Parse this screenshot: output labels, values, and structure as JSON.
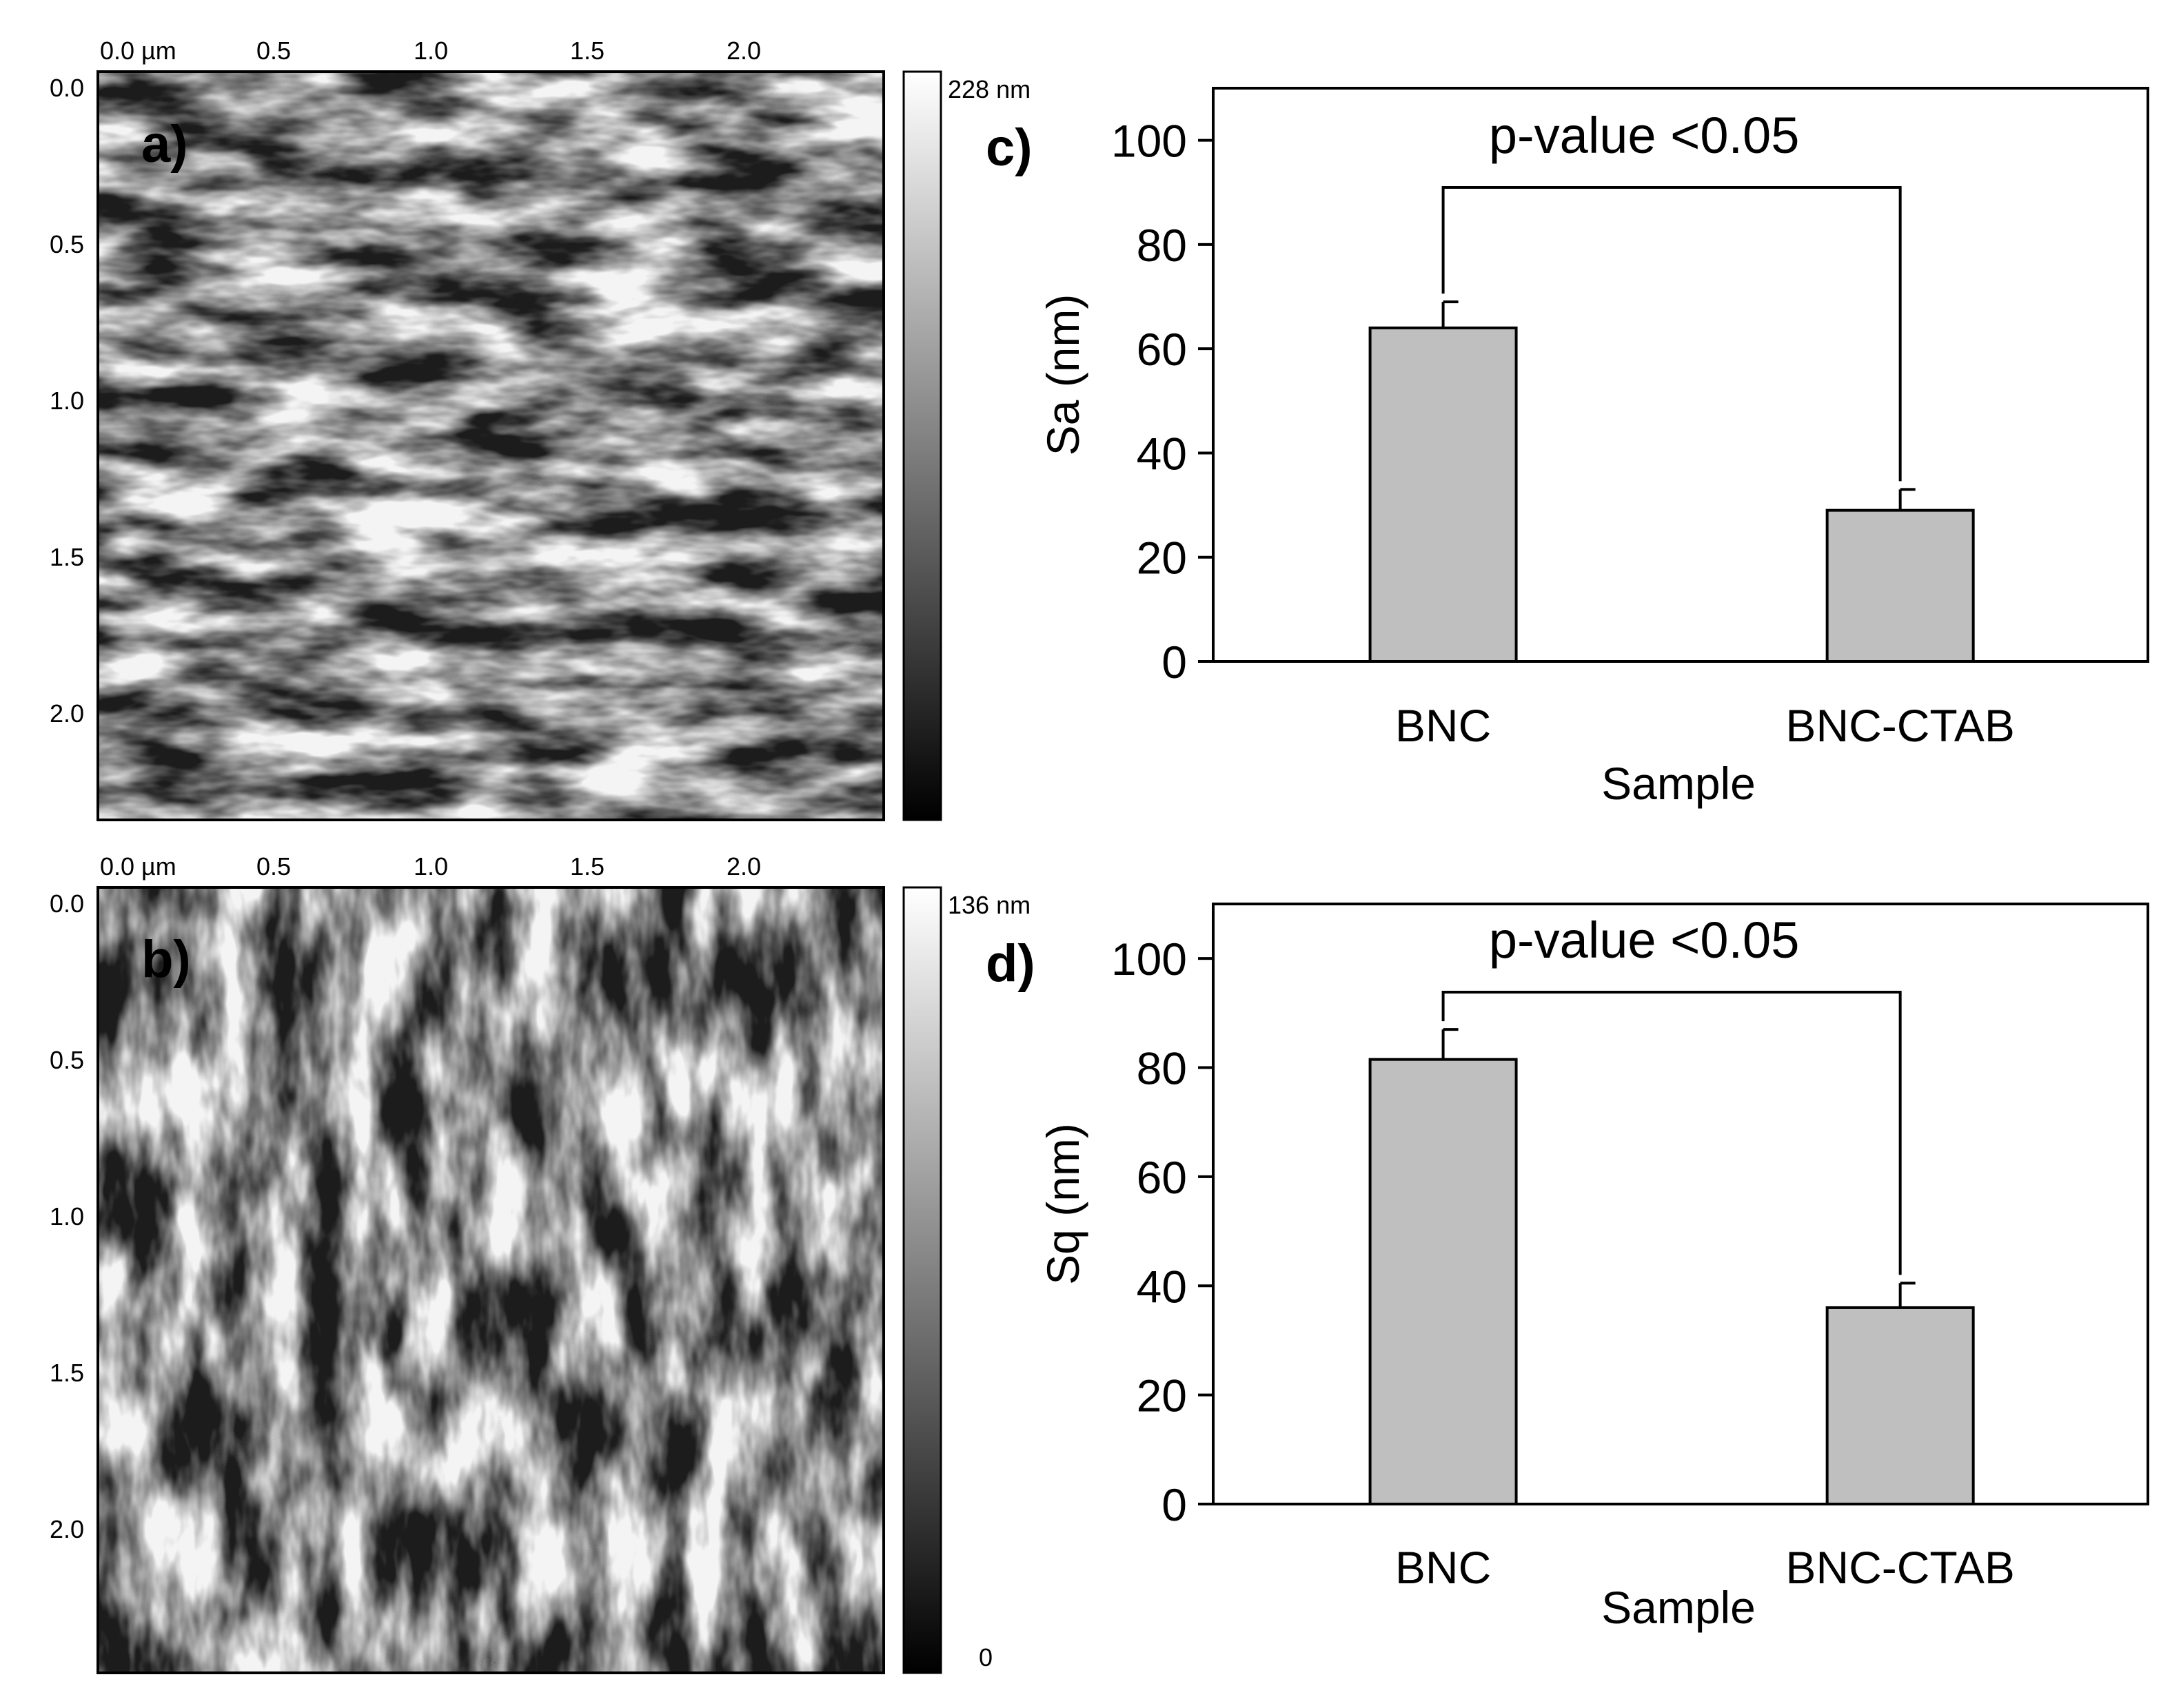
{
  "afm": [
    {
      "panel": "a)",
      "x_ticks": [
        "0.0 µm",
        "0.5",
        "1.0",
        "1.5",
        "2.0"
      ],
      "y_ticks": [
        "0.0",
        "0.5",
        "1.0",
        "1.5",
        "2.0"
      ],
      "scale_max": "228 nm",
      "scale_min": ""
    },
    {
      "panel": "b)",
      "x_ticks": [
        "0.0 µm",
        "0.5",
        "1.0",
        "1.5",
        "2.0"
      ],
      "y_ticks": [
        "0.0",
        "0.5",
        "1.0",
        "1.5",
        "2.0"
      ],
      "scale_max": "136 nm",
      "scale_min": "0"
    }
  ],
  "chart_data": [
    {
      "type": "bar",
      "panel": "c)",
      "categories": [
        "BNC",
        "BNC-CTAB"
      ],
      "values": [
        64,
        29
      ],
      "errors": [
        5,
        4
      ],
      "xlabel": "Sample",
      "ylabel": "Sa (nm)",
      "ylim": [
        0,
        110
      ],
      "yticks": [
        0,
        20,
        40,
        60,
        80,
        100
      ],
      "annotation": "p-value <0.05",
      "bar_color": "#bfbfbf"
    },
    {
      "type": "bar",
      "panel": "d)",
      "categories": [
        "BNC",
        "BNC-CTAB"
      ],
      "values": [
        81.5,
        36
      ],
      "errors": [
        5.5,
        4.5
      ],
      "xlabel": "Sample",
      "ylabel": "Sq (nm)",
      "ylim": [
        0,
        110
      ],
      "yticks": [
        0,
        20,
        40,
        60,
        80,
        100
      ],
      "annotation": "p-value <0.05",
      "bar_color": "#bfbfbf"
    }
  ]
}
